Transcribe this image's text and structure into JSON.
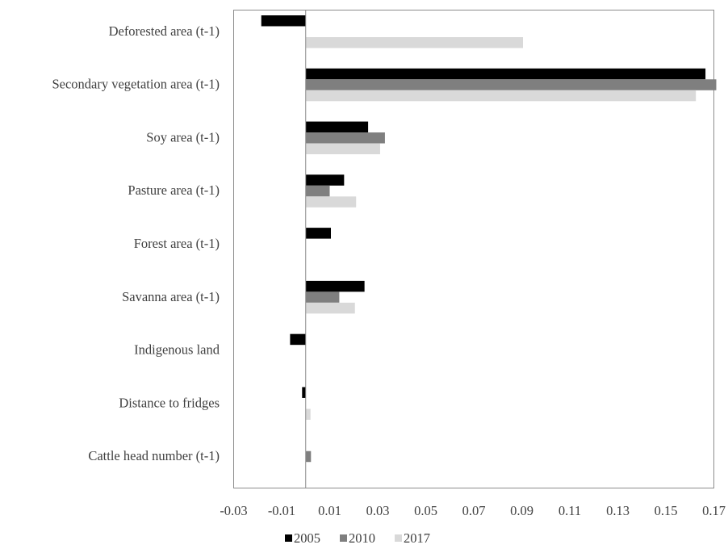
{
  "chart_data": {
    "type": "bar",
    "orientation": "horizontal",
    "categories": [
      "Deforested area (t-1)",
      "Secondary vegetation area (t-1)",
      "Soy area (t-1)",
      "Pasture area (t-1)",
      "Forest area (t-1)",
      "Savanna area (t-1)",
      "Indigenous land",
      "Distance to fridges",
      "Cattle head number (t-1)"
    ],
    "series": [
      {
        "name": "2005",
        "color": "#000000",
        "values": [
          -0.0185,
          0.1665,
          0.026,
          0.016,
          0.0105,
          0.0245,
          -0.0065,
          -0.0015,
          null
        ]
      },
      {
        "name": "2010",
        "color": "#7f7f7f",
        "values": [
          null,
          0.171,
          0.033,
          0.01,
          null,
          0.014,
          null,
          null,
          0.0022
        ]
      },
      {
        "name": "2017",
        "color": "#d9d9d9",
        "values": [
          0.0905,
          0.1625,
          0.031,
          0.021,
          null,
          0.0205,
          null,
          0.002,
          null
        ]
      }
    ],
    "xlim": [
      -0.03,
      0.17
    ],
    "xticks": [
      "-0.03",
      "-0.01",
      "0.01",
      "0.03",
      "0.05",
      "0.07",
      "0.09",
      "0.11",
      "0.13",
      "0.15",
      "0.17"
    ],
    "title": "",
    "xlabel": "",
    "ylabel": "",
    "legend_position": "bottom",
    "grid": false
  }
}
